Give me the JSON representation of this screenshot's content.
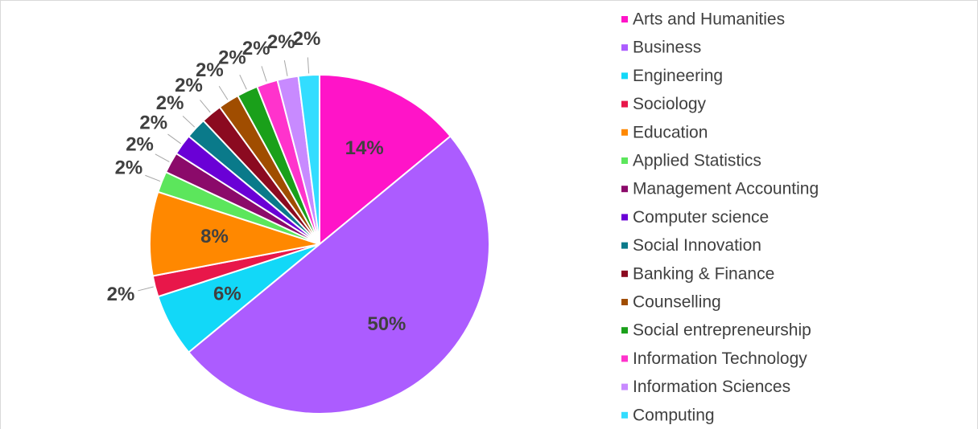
{
  "chart_data": {
    "type": "pie",
    "categories": [
      "Arts and Humanities",
      "Business",
      "Engineering",
      "Sociology",
      "Education",
      "Applied Statistics",
      "Management Accounting",
      "Computer science",
      "Social Innovation",
      "Banking & Finance",
      "Counselling",
      "Social entrepreneurship",
      "Information Technology",
      "Information Sciences",
      "Computing"
    ],
    "values": [
      14,
      50,
      6,
      2,
      8,
      2,
      2,
      2,
      2,
      2,
      2,
      2,
      2,
      2,
      2
    ],
    "value_labels": [
      "14%",
      "50%",
      "6%",
      "2%",
      "8%",
      "2%",
      "2%",
      "2%",
      "2%",
      "2%",
      "2%",
      "2%",
      "2%",
      "2%",
      "2%"
    ],
    "colors": [
      "#ff14c8",
      "#ac5cff",
      "#12d8f8",
      "#e8174a",
      "#ff8800",
      "#5ce65c",
      "#8b0a6a",
      "#6a00d6",
      "#0a7a8a",
      "#8b0a20",
      "#a04d00",
      "#1aa01a",
      "#ff33cc",
      "#c88aff",
      "#33ddff"
    ],
    "legend": "right"
  }
}
